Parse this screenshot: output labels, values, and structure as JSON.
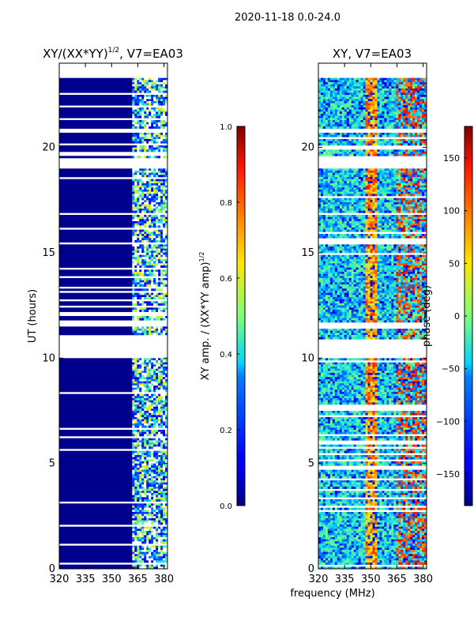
{
  "suptitle": "2020-11-18 0.0-24.0",
  "xlabel_shared": "frequency (MHz)",
  "chart_data": [
    {
      "type": "heatmap",
      "title_main": "XY/(XX*YY)",
      "title_sup": "1/2",
      "title_tail": ", V7=EA03",
      "ylabel": "UT (hours)",
      "xlim": [
        320,
        382
      ],
      "ylim": [
        0,
        24
      ],
      "xticks": [
        320,
        335,
        350,
        365,
        380
      ],
      "yticks": [
        0,
        5,
        10,
        15,
        20
      ],
      "xtick_labels": [
        "320",
        "335",
        "350",
        "365",
        "380"
      ],
      "ytick_labels": [
        "0",
        "5",
        "10",
        "15",
        "20"
      ],
      "colorbar": {
        "label_main": "XY amp. / (XX*YY amp)",
        "label_sup": "1/2",
        "range": [
          0.0,
          1.0
        ],
        "ticks": [
          0.0,
          0.2,
          0.4,
          0.6,
          0.8,
          1.0
        ],
        "tick_labels": [
          "0.0",
          "0.2",
          "0.4",
          "0.6",
          "0.8",
          "1.0"
        ]
      },
      "data_gaps_hours": [
        [
          10.0,
          10.9
        ],
        [
          11.55,
          11.65
        ],
        [
          19.0,
          19.45
        ],
        [
          20.7,
          20.9
        ],
        [
          23.3,
          24.0
        ]
      ]
    },
    {
      "type": "heatmap",
      "title_main": "XY, V7=EA03",
      "xlim": [
        320,
        382
      ],
      "ylim": [
        0,
        24
      ],
      "xticks": [
        320,
        335,
        350,
        365,
        380
      ],
      "yticks": [
        0,
        5,
        10,
        15,
        20
      ],
      "xtick_labels": [
        "320",
        "335",
        "350",
        "365",
        "380"
      ],
      "ytick_labels": [
        "0",
        "5",
        "10",
        "15",
        "20"
      ],
      "colorbar": {
        "label_main": "phase (deg)",
        "range": [
          -180,
          180
        ],
        "ticks": [
          -150,
          -100,
          -50,
          0,
          50,
          100,
          150
        ],
        "tick_labels": [
          "−150",
          "−100",
          "−50",
          "0",
          "50",
          "100",
          "150"
        ]
      },
      "data_gaps_hours": [
        [
          10.0,
          10.9
        ],
        [
          11.55,
          11.65
        ],
        [
          19.0,
          19.45
        ],
        [
          20.7,
          20.9
        ],
        [
          23.3,
          24.0
        ]
      ]
    }
  ]
}
